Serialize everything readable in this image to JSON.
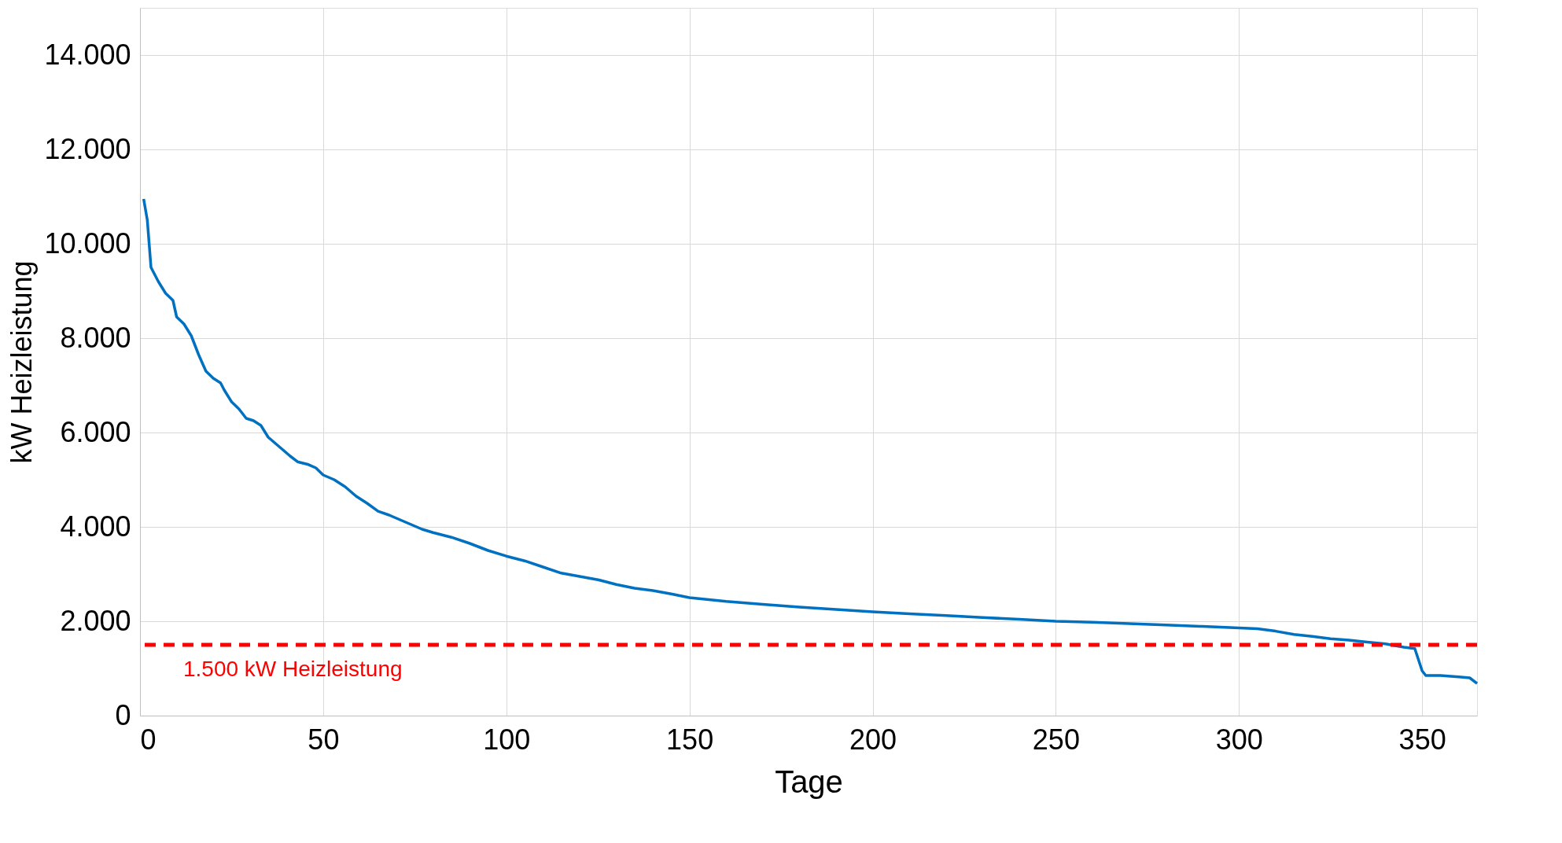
{
  "chart_data": {
    "type": "line",
    "xlabel": "Tage",
    "ylabel": "kW Heizleistung",
    "x": [
      1,
      2,
      3,
      5,
      7,
      9,
      10,
      12,
      14,
      16,
      18,
      20,
      22,
      23,
      25,
      27,
      29,
      31,
      33,
      35,
      38,
      41,
      43,
      46,
      48,
      50,
      53,
      56,
      59,
      62,
      65,
      68,
      71,
      74,
      77,
      80,
      85,
      90,
      95,
      100,
      105,
      110,
      115,
      120,
      125,
      130,
      135,
      140,
      145,
      150,
      160,
      170,
      180,
      190,
      200,
      210,
      220,
      230,
      240,
      250,
      260,
      270,
      280,
      290,
      300,
      305,
      310,
      315,
      320,
      325,
      330,
      335,
      340,
      345,
      348,
      350,
      351,
      355,
      360,
      363,
      365
    ],
    "series": [
      {
        "color": "#0070c0",
        "values": [
          10950,
          10500,
          9500,
          9200,
          8950,
          8800,
          8450,
          8300,
          8050,
          7650,
          7300,
          7150,
          7050,
          6900,
          6650,
          6500,
          6300,
          6250,
          6150,
          5900,
          5700,
          5500,
          5380,
          5320,
          5250,
          5100,
          5000,
          4850,
          4650,
          4500,
          4330,
          4250,
          4150,
          4050,
          3950,
          3880,
          3780,
          3650,
          3500,
          3380,
          3280,
          3150,
          3020,
          2950,
          2880,
          2780,
          2700,
          2650,
          2580,
          2500,
          2420,
          2360,
          2300,
          2250,
          2200,
          2160,
          2120,
          2080,
          2040,
          2000,
          1980,
          1950,
          1920,
          1890,
          1860,
          1840,
          1790,
          1720,
          1680,
          1630,
          1600,
          1560,
          1520,
          1450,
          1420,
          950,
          850,
          850,
          820,
          800,
          680
        ]
      }
    ],
    "xlim": [
      0,
      365
    ],
    "xticks": [
      0,
      50,
      100,
      150,
      200,
      250,
      300,
      350
    ],
    "ylim": [
      0,
      15000
    ],
    "yticks": [
      {
        "value": 0,
        "label": "0"
      },
      {
        "value": 2000,
        "label": "2.000"
      },
      {
        "value": 4000,
        "label": "4.000"
      },
      {
        "value": 6000,
        "label": "6.000"
      },
      {
        "value": 8000,
        "label": "8.000"
      },
      {
        "value": 10000,
        "label": "10.000"
      },
      {
        "value": 12000,
        "label": "12.000"
      },
      {
        "value": 14000,
        "label": "14.000"
      }
    ],
    "ref_lines": [
      {
        "axis": "y",
        "value": 1500,
        "label": "1.500 kW Heizleistung",
        "color": "#ff0000",
        "line_style": "dashed"
      }
    ],
    "grid": true,
    "marker": "none",
    "line_style": "solid"
  }
}
